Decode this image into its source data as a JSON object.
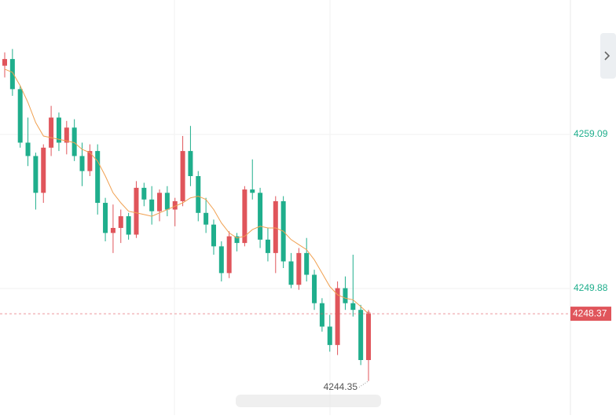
{
  "chart_data": {
    "type": "candlestick",
    "up_color": "#e0555b",
    "down_color": "#1fae8c",
    "ma_color": "#f0a050",
    "ylim": [
      4242.31,
      4267.13
    ],
    "yticks": [
      4249.88,
      4259.09
    ],
    "grid": true,
    "candles": [
      [
        4263.2,
        4264.0,
        4262.5,
        4263.6
      ],
      [
        4263.6,
        4264.2,
        4261.4,
        4261.8
      ],
      [
        4261.8,
        4262.0,
        4258.3,
        4258.6
      ],
      [
        4258.6,
        4260.1,
        4257.2,
        4257.8
      ],
      [
        4257.8,
        4258.0,
        4254.6,
        4255.6
      ],
      [
        4255.6,
        4258.5,
        4255.0,
        4258.3
      ],
      [
        4258.3,
        4260.8,
        4257.8,
        4260.1
      ],
      [
        4260.1,
        4260.4,
        4258.1,
        4258.6
      ],
      [
        4258.6,
        4259.9,
        4257.9,
        4259.5
      ],
      [
        4259.5,
        4260.0,
        4257.5,
        4257.8
      ],
      [
        4257.8,
        4258.6,
        4256.0,
        4256.9
      ],
      [
        4256.9,
        4258.5,
        4256.6,
        4258.1
      ],
      [
        4258.1,
        4258.5,
        4254.3,
        4255.0
      ],
      [
        4255.0,
        4255.3,
        4252.7,
        4253.2
      ],
      [
        4253.2,
        4254.9,
        4252.0,
        4253.5
      ],
      [
        4253.5,
        4254.6,
        4252.6,
        4254.2
      ],
      [
        4254.2,
        4254.4,
        4252.8,
        4253.1
      ],
      [
        4253.1,
        4256.3,
        4252.9,
        4255.9
      ],
      [
        4255.9,
        4256.2,
        4254.8,
        4255.2
      ],
      [
        4255.2,
        4256.0,
        4253.7,
        4254.5
      ],
      [
        4254.5,
        4255.8,
        4253.9,
        4255.6
      ],
      [
        4255.6,
        4256.0,
        4254.2,
        4254.6
      ],
      [
        4254.6,
        4255.3,
        4253.6,
        4255.1
      ],
      [
        4255.1,
        4259.0,
        4254.8,
        4258.1
      ],
      [
        4258.1,
        4259.6,
        4256.0,
        4256.6
      ],
      [
        4256.6,
        4256.9,
        4253.9,
        4254.4
      ],
      [
        4254.4,
        4255.3,
        4253.2,
        4253.7
      ],
      [
        4253.7,
        4254.0,
        4251.9,
        4252.4
      ],
      [
        4252.4,
        4252.7,
        4250.3,
        4250.8
      ],
      [
        4250.8,
        4253.3,
        4250.5,
        4253.0
      ],
      [
        4253.0,
        4253.2,
        4252.1,
        4252.6
      ],
      [
        4252.6,
        4256.0,
        4252.4,
        4255.8
      ],
      [
        4255.8,
        4257.6,
        4255.2,
        4255.6
      ],
      [
        4255.6,
        4255.9,
        4252.3,
        4252.8
      ],
      [
        4252.8,
        4253.5,
        4251.5,
        4252.0
      ],
      [
        4252.0,
        4255.4,
        4250.8,
        4255.1
      ],
      [
        4255.1,
        4255.4,
        4251.1,
        4251.5
      ],
      [
        4251.5,
        4252.0,
        4249.9,
        4250.1
      ],
      [
        4250.1,
        4252.3,
        4249.8,
        4252.0
      ],
      [
        4252.0,
        4252.9,
        4250.3,
        4250.7
      ],
      [
        4250.7,
        4251.0,
        4248.6,
        4249.0
      ],
      [
        4249.0,
        4249.3,
        4247.3,
        4247.6
      ],
      [
        4247.6,
        4248.3,
        4246.1,
        4246.5
      ],
      [
        4246.5,
        4250.3,
        4245.9,
        4249.9
      ],
      [
        4249.9,
        4250.6,
        4248.6,
        4249.0
      ],
      [
        4249.0,
        4251.9,
        4248.2,
        4248.6
      ],
      [
        4248.6,
        4248.9,
        4245.3,
        4245.6
      ],
      [
        4245.6,
        4248.6,
        4244.35,
        4248.37
      ]
    ],
    "ma": [
      4263.0,
      4262.8,
      4262.0,
      4261.0,
      4259.8,
      4259.0,
      4258.9,
      4258.8,
      4258.7,
      4258.6,
      4258.2,
      4258.0,
      4257.5,
      4256.6,
      4255.6,
      4255.0,
      4254.5,
      4254.4,
      4254.3,
      4254.2,
      4254.4,
      4254.6,
      4254.8,
      4255.0,
      4255.3,
      4255.4,
      4255.2,
      4254.6,
      4253.8,
      4253.2,
      4252.9,
      4253.0,
      4253.4,
      4253.6,
      4253.5,
      4253.5,
      4253.3,
      4252.8,
      4252.5,
      4252.2,
      4251.6,
      4250.8,
      4250.0,
      4249.5,
      4249.3,
      4249.2,
      4248.8,
      4248.37
    ]
  }
}
